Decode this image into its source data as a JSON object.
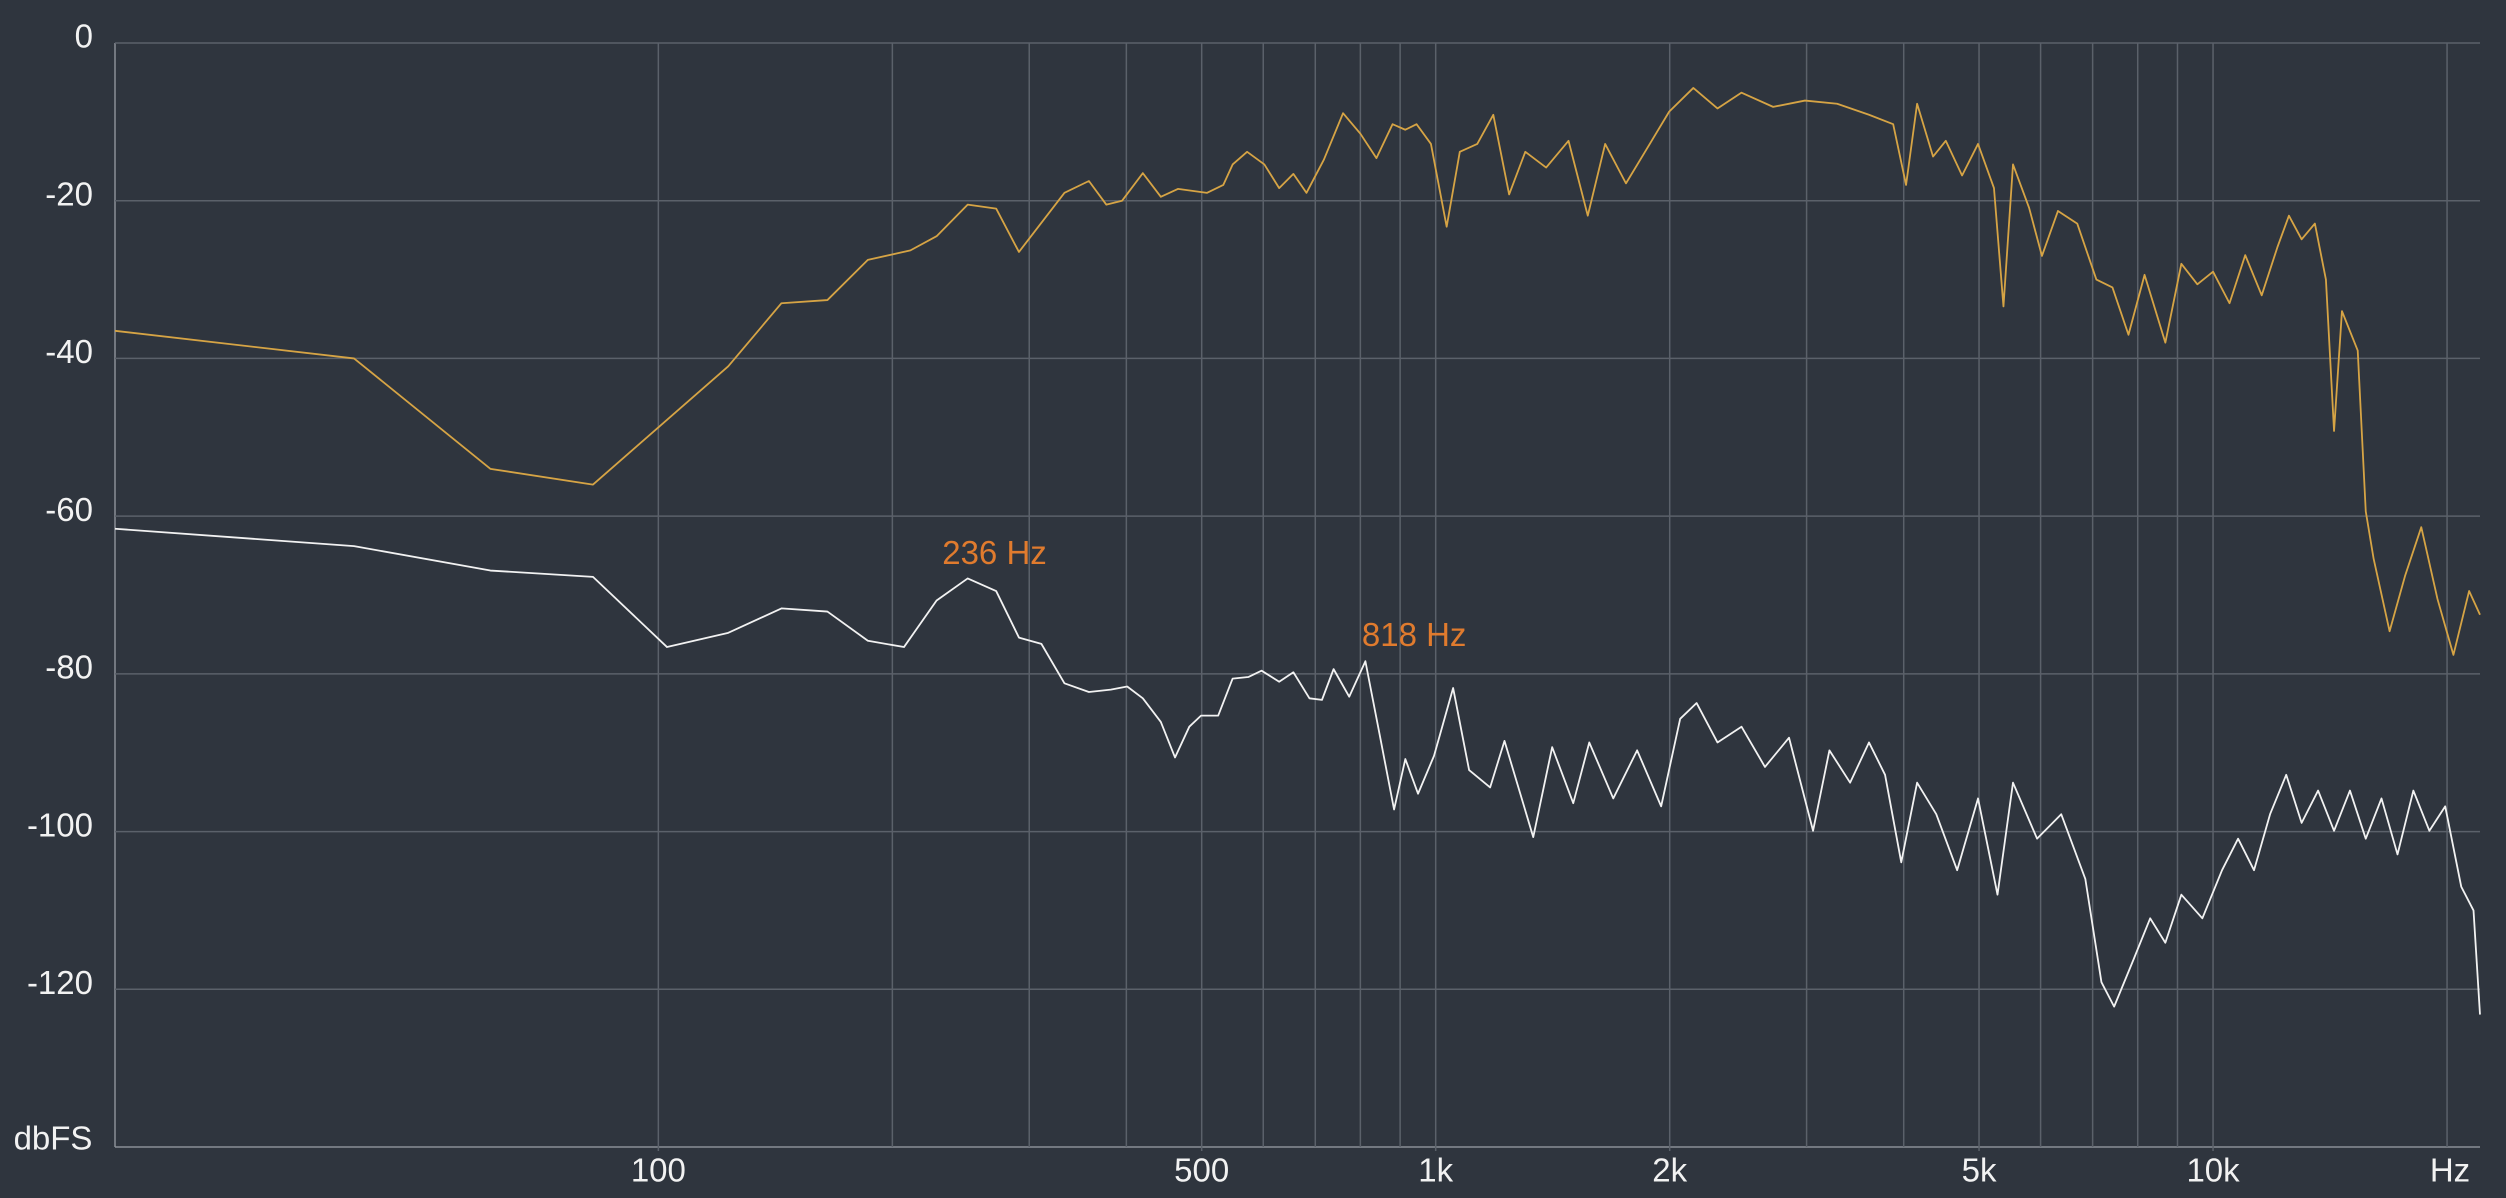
{
  "chart_data": {
    "type": "line",
    "xscale": "log",
    "xlim": [
      20,
      22050
    ],
    "ylim": [
      -140,
      0
    ],
    "xlabel": "Hz",
    "ylabel": "dbFS",
    "xticks": [
      100,
      500,
      {
        "value": 1000,
        "label": "1k"
      },
      {
        "value": 2000,
        "label": "2k"
      },
      {
        "value": 5000,
        "label": "5k"
      },
      {
        "value": 10000,
        "label": "10k"
      }
    ],
    "xgrid": [
      100,
      200,
      300,
      400,
      500,
      600,
      700,
      800,
      900,
      1000,
      2000,
      3000,
      4000,
      5000,
      6000,
      7000,
      8000,
      9000,
      10000,
      20000
    ],
    "yticks": [
      0,
      -20,
      -40,
      -60,
      -80,
      -100,
      -120
    ],
    "grid": true,
    "series": [
      {
        "color": "#d6a445",
        "x": [
          20,
          40.6,
          60.8,
          82.4,
          123,
          144,
          165,
          186,
          211,
          228,
          250,
          272,
          291,
          333,
          358,
          377,
          395,
          420,
          443,
          466,
          508,
          533,
          548,
          572,
          602,
          629,
          656,
          682,
          718,
          760,
          800,
          839,
          880,
          914,
          945,
          986,
          1033,
          1074,
          1131,
          1186,
          1243,
          1304,
          1387,
          1482,
          1569,
          1652,
          1757,
          1859,
          1997,
          2145,
          2304,
          2474,
          2717,
          2986,
          3284,
          3609,
          3877,
          4028,
          4162,
          4363,
          4531,
          4755,
          4985,
          5226,
          5375,
          5529,
          5799,
          6024,
          6317,
          6688,
          7078,
          7423,
          7784,
          8164,
          8682,
          9104,
          9546,
          10000,
          10500,
          11000,
          11550,
          12100,
          12520,
          13000,
          13520,
          13970,
          14310,
          14650,
          15350,
          15720,
          16090,
          16870,
          17670,
          18530,
          19440,
          20380,
          21350,
          22050
        ],
        "values": [
          -36.5,
          -40,
          -54,
          -56,
          -41,
          -33,
          -32.6,
          -27.5,
          -26.3,
          -24.5,
          -20.5,
          -21,
          -26.5,
          -19,
          -17.5,
          -20.5,
          -20,
          -16.5,
          -19.5,
          -18.5,
          -19,
          -18,
          -15.4,
          -13.8,
          -15.4,
          -18.4,
          -16.6,
          -19,
          -14.8,
          -8.9,
          -11.5,
          -14.6,
          -10.3,
          -11,
          -10.3,
          -12.8,
          -23.3,
          -13.8,
          -12.8,
          -9.1,
          -19.2,
          -13.8,
          -15.8,
          -12.4,
          -21.9,
          -12.8,
          -17.8,
          -13.8,
          -8.7,
          -5.7,
          -8.3,
          -6.3,
          -8.1,
          -7.3,
          -7.7,
          -9.1,
          -10.3,
          -18,
          -7.7,
          -14.4,
          -12.4,
          -16.8,
          -12.8,
          -18.4,
          -33.4,
          -15.4,
          -20.9,
          -27,
          -21.3,
          -22.9,
          -30,
          -31,
          -37,
          -29.4,
          -38,
          -28,
          -30.6,
          -29,
          -33,
          -26.9,
          -32,
          -25.9,
          -21.9,
          -24.9,
          -22.9,
          -30,
          -49.2,
          -34,
          -39,
          -59.4,
          -65.4,
          -74.6,
          -67.5,
          -61.4,
          -70.5,
          -77.6,
          -69.5,
          -72.5
        ]
      },
      {
        "color": "#f2f2f2",
        "x": [
          20,
          40.6,
          60.8,
          82.4,
          102.6,
          123,
          144,
          165,
          186,
          207,
          228,
          250,
          272,
          291,
          311,
          333,
          358,
          382,
          401,
          420,
          443,
          462,
          482,
          499,
          525,
          548,
          574,
          597,
          629,
          656,
          688,
          714,
          739,
          774,
          812,
          847,
          884,
          914,
          949,
          995,
          1053,
          1104,
          1175,
          1226,
          1335,
          1412,
          1503,
          1576,
          1692,
          1816,
          1950,
          2063,
          2166,
          2304,
          2474,
          2652,
          2848,
          3058,
          3210,
          3413,
          3609,
          3785,
          3971,
          4162,
          4405,
          4686,
          4985,
          5281,
          5529,
          5938,
          6378,
          6850,
          7185,
          7460,
          7911,
          8301,
          8682,
          9104,
          9688,
          10270,
          10770,
          11290,
          11840,
          12420,
          13000,
          13650,
          14310,
          15000,
          15720,
          16470,
          17270,
          18100,
          18980,
          19890,
          20860,
          21630,
          22050
        ],
        "values": [
          -61.6,
          -63.8,
          -66.9,
          -67.7,
          -76.6,
          -74.8,
          -71.7,
          -72.1,
          -75.8,
          -76.6,
          -70.7,
          -67.9,
          -69.5,
          -75.4,
          -76.2,
          -81.2,
          -82.3,
          -82,
          -81.6,
          -83.1,
          -86.1,
          -90.6,
          -86.7,
          -85.3,
          -85.3,
          -80.6,
          -80.4,
          -79.6,
          -81,
          -79.8,
          -83.1,
          -83.3,
          -79.4,
          -82.9,
          -78.4,
          -87.7,
          -97.2,
          -90.8,
          -95.2,
          -90.4,
          -81.8,
          -92.2,
          -94.4,
          -88.5,
          -100.7,
          -89.3,
          -96.4,
          -88.7,
          -95.8,
          -89.7,
          -96.8,
          -85.7,
          -83.7,
          -88.7,
          -86.7,
          -91.8,
          -88.1,
          -99.9,
          -89.7,
          -93.8,
          -88.7,
          -92.8,
          -103.9,
          -93.8,
          -97.8,
          -104.9,
          -95.8,
          -108,
          -93.8,
          -100.9,
          -97.8,
          -106,
          -119.1,
          -122.2,
          -116.1,
          -111,
          -114.1,
          -108,
          -111,
          -104.9,
          -100.9,
          -104.9,
          -97.8,
          -92.8,
          -98.9,
          -94.8,
          -99.9,
          -94.8,
          -100.9,
          -95.8,
          -102.9,
          -94.8,
          -99.9,
          -96.8,
          -107,
          -110,
          -123.2
        ]
      }
    ],
    "annotations": [
      {
        "text": "236 Hz",
        "x": 236,
        "y": -68,
        "color": "#e07b2e"
      },
      {
        "text": "818 Hz",
        "x": 818,
        "y": -78.4,
        "color": "#e07b2e"
      }
    ]
  }
}
